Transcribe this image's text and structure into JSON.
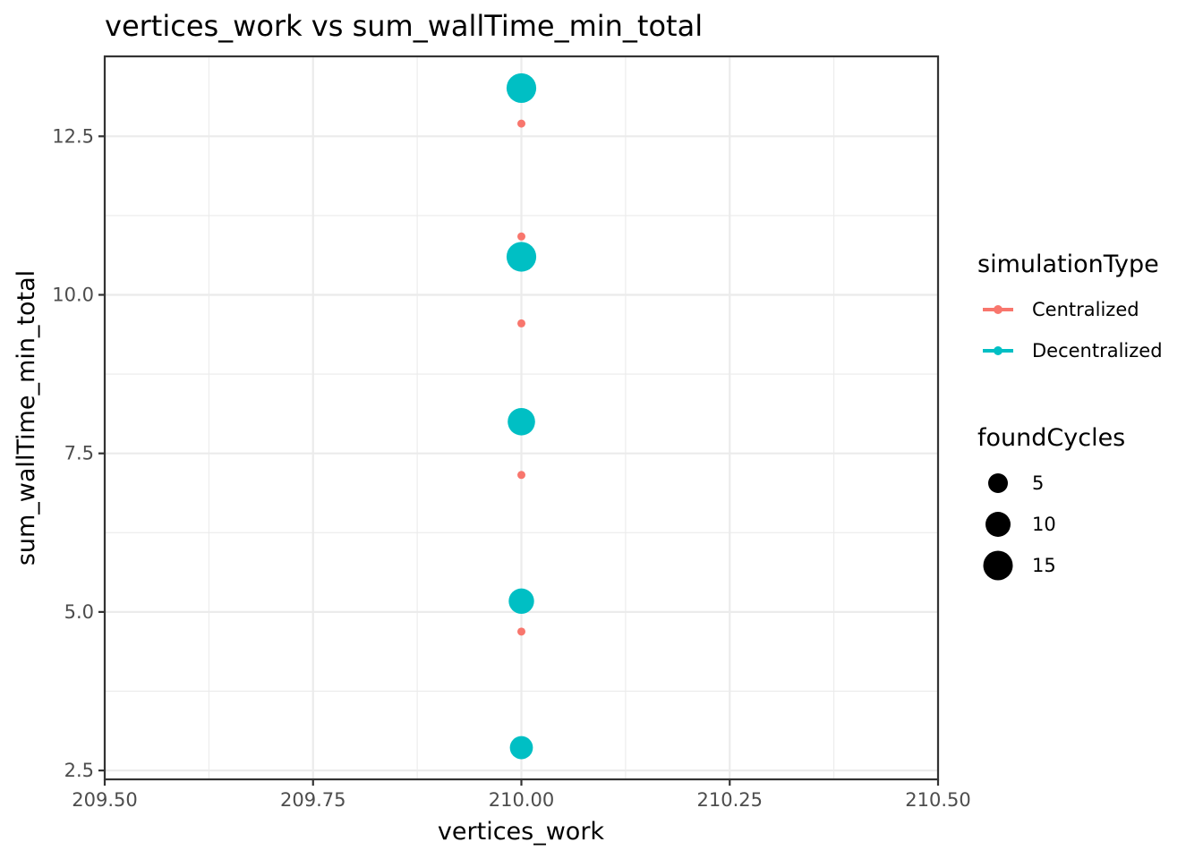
{
  "chart_data": {
    "type": "scatter",
    "title": "vertices_work  vs  sum_wallTime_min_total",
    "xlabel": "vertices_work",
    "ylabel": "sum_wallTime_min_total",
    "xlim": [
      209.5,
      210.5
    ],
    "ylim": [
      2.36,
      13.76
    ],
    "x_ticks": [
      209.5,
      209.75,
      210.0,
      210.25,
      210.5
    ],
    "x_tick_labels": [
      "209.50",
      "209.75",
      "210.00",
      "210.25",
      "210.50"
    ],
    "y_ticks": [
      2.5,
      5.0,
      7.5,
      10.0,
      12.5
    ],
    "y_tick_labels": [
      "2.5",
      "5.0",
      "7.5",
      "10.0",
      "12.5"
    ],
    "grid": true,
    "legend_placement": "right",
    "series": [
      {
        "name": "Centralized",
        "color": "#F8766D",
        "points": [
          {
            "x": 210.0,
            "y": 12.7,
            "foundCycles": 0
          },
          {
            "x": 210.0,
            "y": 10.92,
            "foundCycles": 0
          },
          {
            "x": 210.0,
            "y": 9.55,
            "foundCycles": 0
          },
          {
            "x": 210.0,
            "y": 7.16,
            "foundCycles": 0
          },
          {
            "x": 210.0,
            "y": 4.69,
            "foundCycles": 0
          }
        ]
      },
      {
        "name": "Decentralized",
        "color": "#00BFC4",
        "points": [
          {
            "x": 210.0,
            "y": 13.26,
            "foundCycles": 16
          },
          {
            "x": 210.0,
            "y": 10.6,
            "foundCycles": 16
          },
          {
            "x": 210.0,
            "y": 8.0,
            "foundCycles": 12
          },
          {
            "x": 210.0,
            "y": 5.17,
            "foundCycles": 9
          },
          {
            "x": 210.0,
            "y": 2.86,
            "foundCycles": 6
          }
        ]
      }
    ],
    "legend": {
      "color_title": "simulationType",
      "size_title": "foundCycles",
      "size_entries": [
        {
          "label": "5",
          "value": 5
        },
        {
          "label": "10",
          "value": 10
        },
        {
          "label": "15",
          "value": 15
        }
      ]
    }
  }
}
